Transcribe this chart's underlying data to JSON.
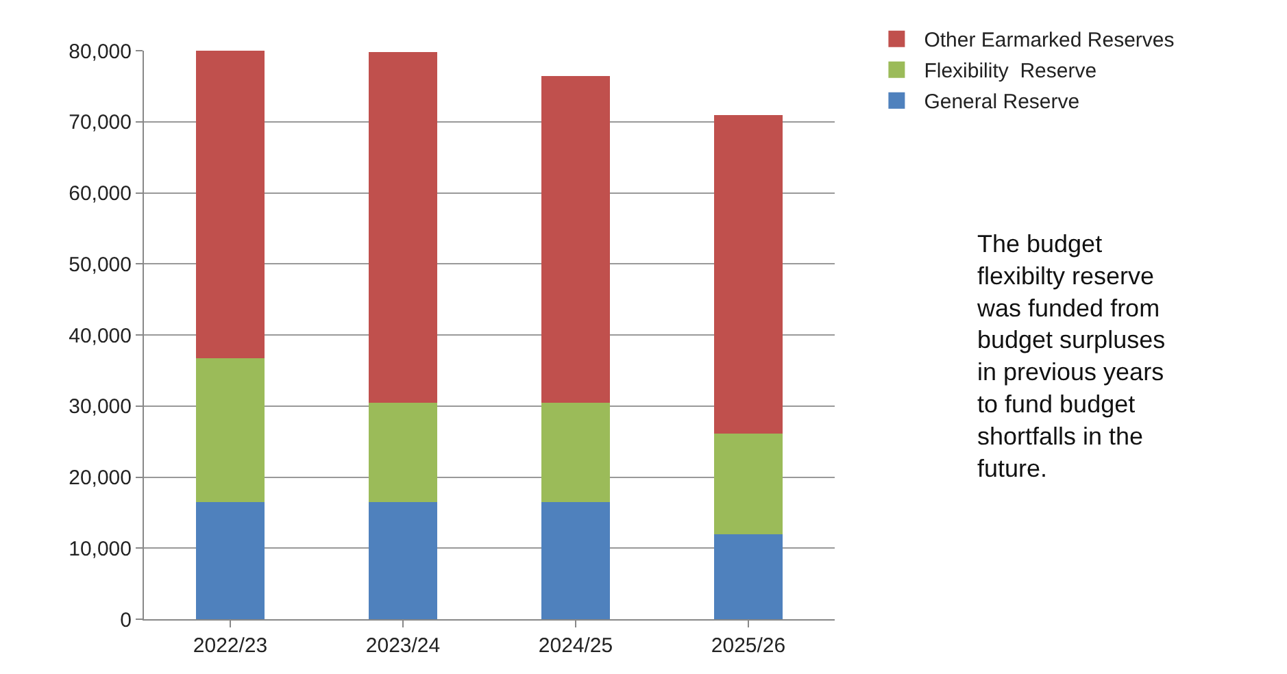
{
  "chart_data": {
    "type": "bar",
    "stacked": true,
    "categories": [
      "2022/23",
      "2023/24",
      "2024/25",
      "2025/26"
    ],
    "series": [
      {
        "name": "General Reserve",
        "color": "#4f81bd",
        "values": [
          16500,
          16500,
          16500,
          12000
        ]
      },
      {
        "name": "Flexibility  Reserve",
        "color": "#9bbb59",
        "values": [
          20200,
          14000,
          14000,
          14100
        ]
      },
      {
        "name": "Other Earmarked Reserves",
        "color": "#c0504d",
        "values": [
          43300,
          49300,
          45900,
          44800
        ]
      }
    ],
    "ylim": [
      0,
      80000
    ],
    "yticks": [
      {
        "value": 0,
        "label": "0"
      },
      {
        "value": 10000,
        "label": "10,000"
      },
      {
        "value": 20000,
        "label": "20,000"
      },
      {
        "value": 30000,
        "label": "30,000"
      },
      {
        "value": 40000,
        "label": "40,000"
      },
      {
        "value": 50000,
        "label": "50,000"
      },
      {
        "value": 60000,
        "label": "60,000"
      },
      {
        "value": 70000,
        "label": "70,000"
      },
      {
        "value": 80000,
        "label": "80,000"
      }
    ],
    "grid": "y",
    "legend": "top right",
    "annotations": [
      "The budget\nflexibilty reserve\nwas funded from\nbudget surpluses\nin previous years\nto fund budget\nshortfalls in the\nfuture."
    ]
  }
}
